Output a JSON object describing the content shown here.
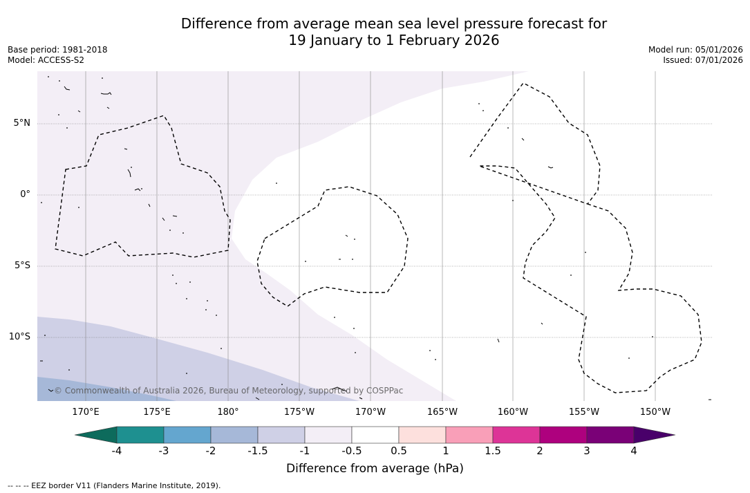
{
  "title": {
    "line1": "Difference from average mean sea level pressure forecast for",
    "line2": "19 January to 1 February 2026"
  },
  "meta": {
    "base_period": "Base period: 1981-2018",
    "model": "Model: ACCESS-S2",
    "model_run": "Model run: 05/01/2026",
    "issued": "Issued: 07/01/2026"
  },
  "axes": {
    "lat_labels": [
      "5°N",
      "0°",
      "5°S",
      "10°S"
    ],
    "lon_labels": [
      "170°E",
      "175°E",
      "180°",
      "175°W",
      "170°W",
      "165°W",
      "160°W",
      "155°W",
      "150°W"
    ]
  },
  "copyright": "© Commonwealth of Australia 2026, Bureau of Meteorology, supported by COSPPac",
  "colorbar": {
    "title": "Difference from average (hPa)",
    "ticks": [
      "-4",
      "-3",
      "-2",
      "-1.5",
      "-1",
      "-0.5",
      "0.5",
      "1",
      "1.5",
      "2",
      "3",
      "4"
    ],
    "colors": {
      "extend_low": "#0d6b5c",
      "lt_-3": "#1e9090",
      "-3_-2": "#64a6cf",
      "-2_-1.5": "#a6b8d8",
      "-1.5_-1": "#cfd0e6",
      "-1_-0.5": "#f3eef6",
      "-0.5_0.5": "#ffffff",
      "0.5_1": "#fde0dd",
      "1_1.5": "#f99fb8",
      "1.5_2": "#dd3497",
      "2_3": "#ae017e",
      "3_4": "#7a0177",
      "extend_high": "#49006a"
    }
  },
  "legend_note": "--  --  -- EEZ border V11 (Flanders Marine Institute, 2019)."
}
